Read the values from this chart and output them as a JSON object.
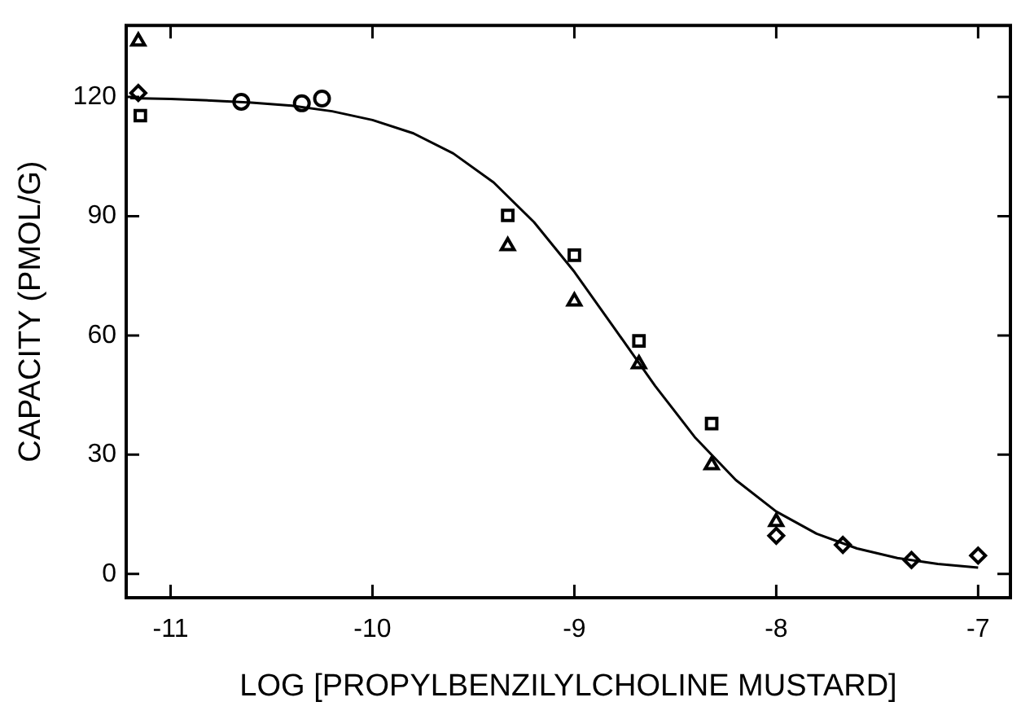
{
  "chart_data": {
    "type": "scatter",
    "xlabel": "LOG [PROPYLBENZILYLCHOLINE MUSTARD]",
    "ylabel": "CAPACITY (PMOL/G)",
    "xlim": [
      -11.22,
      -6.84
    ],
    "xticks": [
      -11,
      -10,
      -9,
      -8,
      -7
    ],
    "ylim": [
      -6,
      138
    ],
    "yticks": [
      0,
      30,
      60,
      90,
      120
    ],
    "grid": false,
    "legend": false,
    "series": [
      {
        "type": "line",
        "color": "#000000",
        "marker": "none",
        "line_style": "solid",
        "x": [
          -11.2,
          -11.0,
          -10.8,
          -10.6,
          -10.4,
          -10.2,
          -10.0,
          -9.8,
          -9.6,
          -9.4,
          -9.2,
          -9.0,
          -8.8,
          -8.6,
          -8.4,
          -8.2,
          -8.0,
          -7.8,
          -7.6,
          -7.4,
          -7.2,
          -7.0
        ],
        "values": [
          119.7,
          119.5,
          119.1,
          118.6,
          117.8,
          116.4,
          114.2,
          110.9,
          105.8,
          98.5,
          88.5,
          76.0,
          61.7,
          47.3,
          34.2,
          23.6,
          15.7,
          10.1,
          6.4,
          4.0,
          2.5,
          1.6
        ]
      },
      {
        "type": "scatter",
        "color": "#000000",
        "marker": "triangle",
        "x": [
          -11.16,
          -9.33,
          -9.0,
          -8.68,
          -8.32,
          -8.0
        ],
        "values": [
          134,
          82.5,
          68.6,
          52.8,
          27.4,
          13.1
        ]
      },
      {
        "type": "scatter",
        "color": "#000000",
        "marker": "square",
        "x": [
          -11.15,
          -9.33,
          -9.0,
          -8.68,
          -8.32
        ],
        "values": [
          115.3,
          90.2,
          80.2,
          58.6,
          37.8
        ]
      },
      {
        "type": "scatter",
        "color": "#000000",
        "marker": "diamond",
        "x": [
          -11.16,
          -8.0,
          -7.67,
          -7.33,
          -7.0
        ],
        "values": [
          121,
          9.6,
          7.3,
          3.5,
          4.6
        ]
      },
      {
        "type": "scatter",
        "color": "#000000",
        "marker": "circle",
        "x": [
          -10.65,
          -10.35,
          -10.25
        ],
        "values": [
          118.8,
          118.4,
          119.6
        ]
      }
    ]
  }
}
